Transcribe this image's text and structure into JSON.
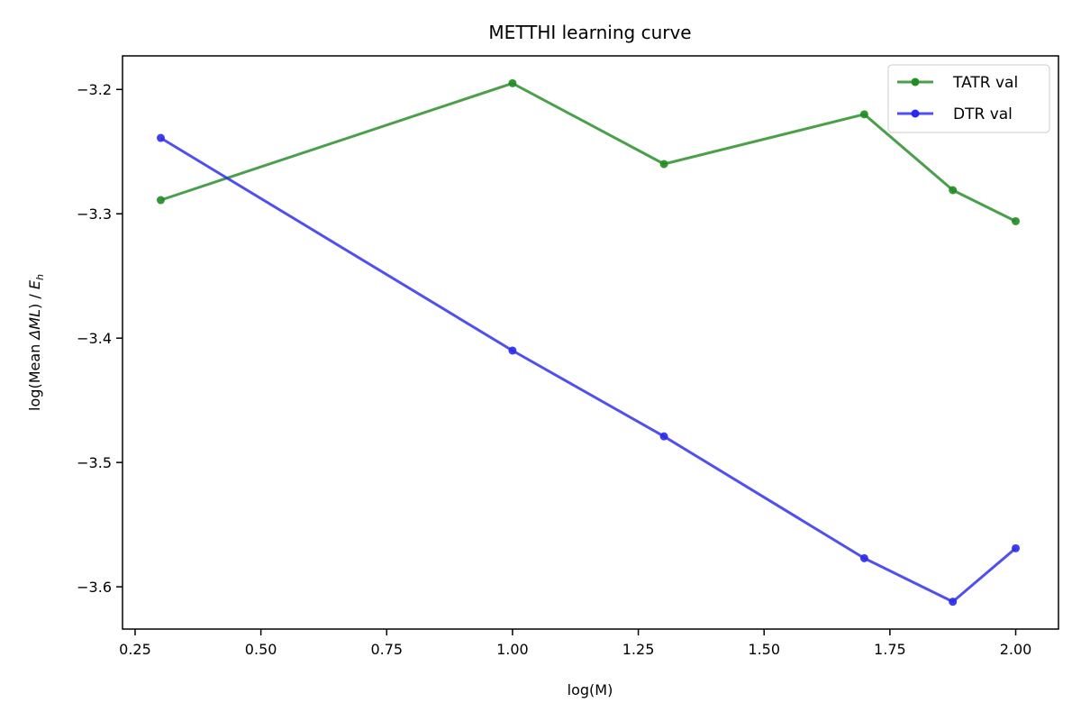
{
  "chart_data": {
    "type": "line",
    "title": "METTHI learning curve",
    "xlabel": "log(M)",
    "ylabel_prefix": "log(Mean ",
    "ylabel_math": "ΔML",
    "ylabel_mid": ") / ",
    "ylabel_E": "E",
    "ylabel_sub": "h",
    "xlim": [
      0.225,
      2.085
    ],
    "ylim": [
      -3.634,
      -3.173
    ],
    "x_ticks": [
      0.25,
      0.5,
      0.75,
      1.0,
      1.25,
      1.5,
      1.75,
      2.0
    ],
    "x_tick_labels": [
      "0.25",
      "0.50",
      "0.75",
      "1.00",
      "1.25",
      "1.50",
      "1.75",
      "2.00"
    ],
    "y_ticks": [
      -3.2,
      -3.3,
      -3.4,
      -3.5,
      -3.6
    ],
    "y_tick_labels": [
      "−3.2",
      "−3.3",
      "−3.4",
      "−3.5",
      "−3.6"
    ],
    "grid": false,
    "legend_position": "top-right",
    "series": [
      {
        "name": "TATR val",
        "color": "#228b22",
        "x": [
          0.301,
          1.0,
          1.301,
          1.699,
          1.875,
          2.0
        ],
        "y": [
          -3.289,
          -3.195,
          -3.26,
          -3.22,
          -3.281,
          -3.306
        ]
      },
      {
        "name": "DTR val",
        "color": "#2a2aee",
        "x": [
          0.301,
          1.0,
          1.301,
          1.699,
          1.875,
          2.0
        ],
        "y": [
          -3.239,
          -3.41,
          -3.479,
          -3.577,
          -3.612,
          -3.569
        ]
      }
    ]
  }
}
